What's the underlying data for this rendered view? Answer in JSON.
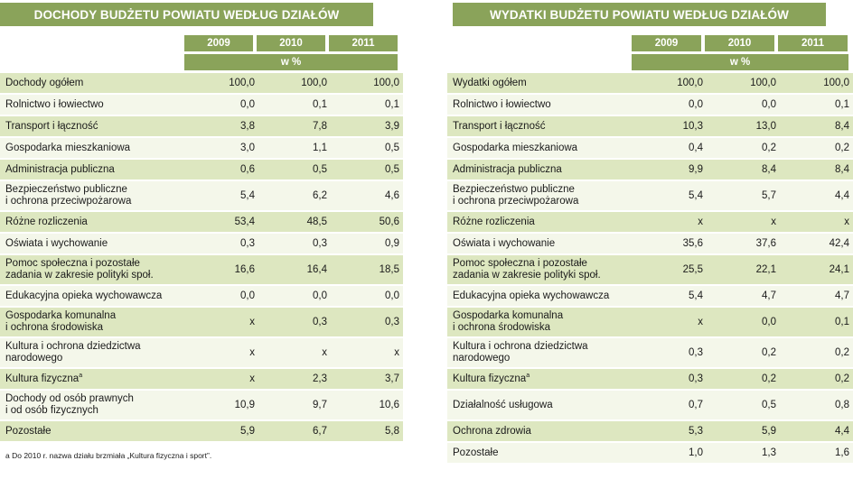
{
  "left": {
    "title": "DOCHODY BUDŻETU POWIATU WEDŁUG DZIAŁÓW",
    "years": [
      "2009",
      "2010",
      "2011"
    ],
    "unit": "w %",
    "rows": [
      {
        "label": "Dochody ogółem",
        "values": [
          "100,0",
          "100,0",
          "100,0"
        ]
      },
      {
        "label": "Rolnictwo i łowiectwo",
        "values": [
          "0,0",
          "0,1",
          "0,1"
        ]
      },
      {
        "label": "Transport i łączność",
        "values": [
          "3,8",
          "7,8",
          "3,9"
        ]
      },
      {
        "label": "Gospodarka mieszkaniowa",
        "values": [
          "3,0",
          "1,1",
          "0,5"
        ]
      },
      {
        "label": "Administracja publiczna",
        "values": [
          "0,6",
          "0,5",
          "0,5"
        ]
      },
      {
        "label": "Bezpieczeństwo publiczne\n i ochrona przeciwpożarowa",
        "values": [
          "5,4",
          "6,2",
          "4,6"
        ]
      },
      {
        "label": "Różne rozliczenia",
        "values": [
          "53,4",
          "48,5",
          "50,6"
        ]
      },
      {
        "label": "Oświata i wychowanie",
        "values": [
          "0,3",
          "0,3",
          "0,9"
        ]
      },
      {
        "label": "Pomoc społeczna i pozostałe\n zadania w zakresie polityki społ.",
        "values": [
          "16,6",
          "16,4",
          "18,5"
        ]
      },
      {
        "label": "Edukacyjna opieka wychowawcza",
        "values": [
          "0,0",
          "0,0",
          "0,0"
        ]
      },
      {
        "label": "Gospodarka komunalna\n i ochrona środowiska",
        "values": [
          "x",
          "0,3",
          "0,3"
        ]
      },
      {
        "label": "Kultura i ochrona dziedzictwa\n narodowego",
        "values": [
          "x",
          "x",
          "x"
        ]
      },
      {
        "label": "Kultura fizyczna",
        "sup": "a",
        "values": [
          "x",
          "2,3",
          "3,7"
        ]
      },
      {
        "label": "Dochody od osób prawnych\n i od osób fizycznych",
        "values": [
          "10,9",
          "9,7",
          "10,6"
        ]
      },
      {
        "label": "Pozostałe",
        "values": [
          "5,9",
          "6,7",
          "5,8"
        ]
      }
    ],
    "footnote": "a  Do 2010 r. nazwa działu brzmiała  „Kultura fizyczna i sport”."
  },
  "right": {
    "title": "WYDATKI BUDŻETU POWIATU WEDŁUG DZIAŁÓW",
    "years": [
      "2009",
      "2010",
      "2011"
    ],
    "unit": "w %",
    "rows": [
      {
        "label": "Wydatki ogółem",
        "values": [
          "100,0",
          "100,0",
          "100,0"
        ]
      },
      {
        "label": "Rolnictwo i łowiectwo",
        "values": [
          "0,0",
          "0,0",
          "0,1"
        ]
      },
      {
        "label": "Transport i łączność",
        "values": [
          "10,3",
          "13,0",
          "8,4"
        ]
      },
      {
        "label": "Gospodarka mieszkaniowa",
        "values": [
          "0,4",
          "0,2",
          "0,2"
        ]
      },
      {
        "label": "Administracja publiczna",
        "values": [
          "9,9",
          "8,4",
          "8,4"
        ]
      },
      {
        "label": "Bezpieczeństwo publiczne\n i ochrona przeciwpożarowa",
        "values": [
          "5,4",
          "5,7",
          "4,4"
        ]
      },
      {
        "label": "Różne rozliczenia",
        "values": [
          "x",
          "x",
          "x"
        ]
      },
      {
        "label": "Oświata i wychowanie",
        "values": [
          "35,6",
          "37,6",
          "42,4"
        ]
      },
      {
        "label": "Pomoc społeczna i pozostałe\n zadania w zakresie polityki społ.",
        "values": [
          "25,5",
          "22,1",
          "24,1"
        ]
      },
      {
        "label": "Edukacyjna opieka wychowawcza",
        "values": [
          "5,4",
          "4,7",
          "4,7"
        ]
      },
      {
        "label": "Gospodarka komunalna\n i ochrona środowiska",
        "values": [
          "x",
          "0,0",
          "0,1"
        ]
      },
      {
        "label": "Kultura i ochrona dziedzictwa\n narodowego",
        "values": [
          "0,3",
          "0,2",
          "0,2"
        ]
      },
      {
        "label": "Kultura fizyczna",
        "sup": "a",
        "values": [
          "0,3",
          "0,2",
          "0,2"
        ]
      },
      {
        "label": "Działalność usługowa",
        "values": [
          "0,7",
          "0,5",
          "0,8"
        ]
      },
      {
        "label": "Ochrona zdrowia",
        "values": [
          "5,3",
          "5,9",
          "4,4"
        ]
      },
      {
        "label": "Pozostałe",
        "values": [
          "1,0",
          "1,3",
          "1,6"
        ]
      }
    ]
  }
}
